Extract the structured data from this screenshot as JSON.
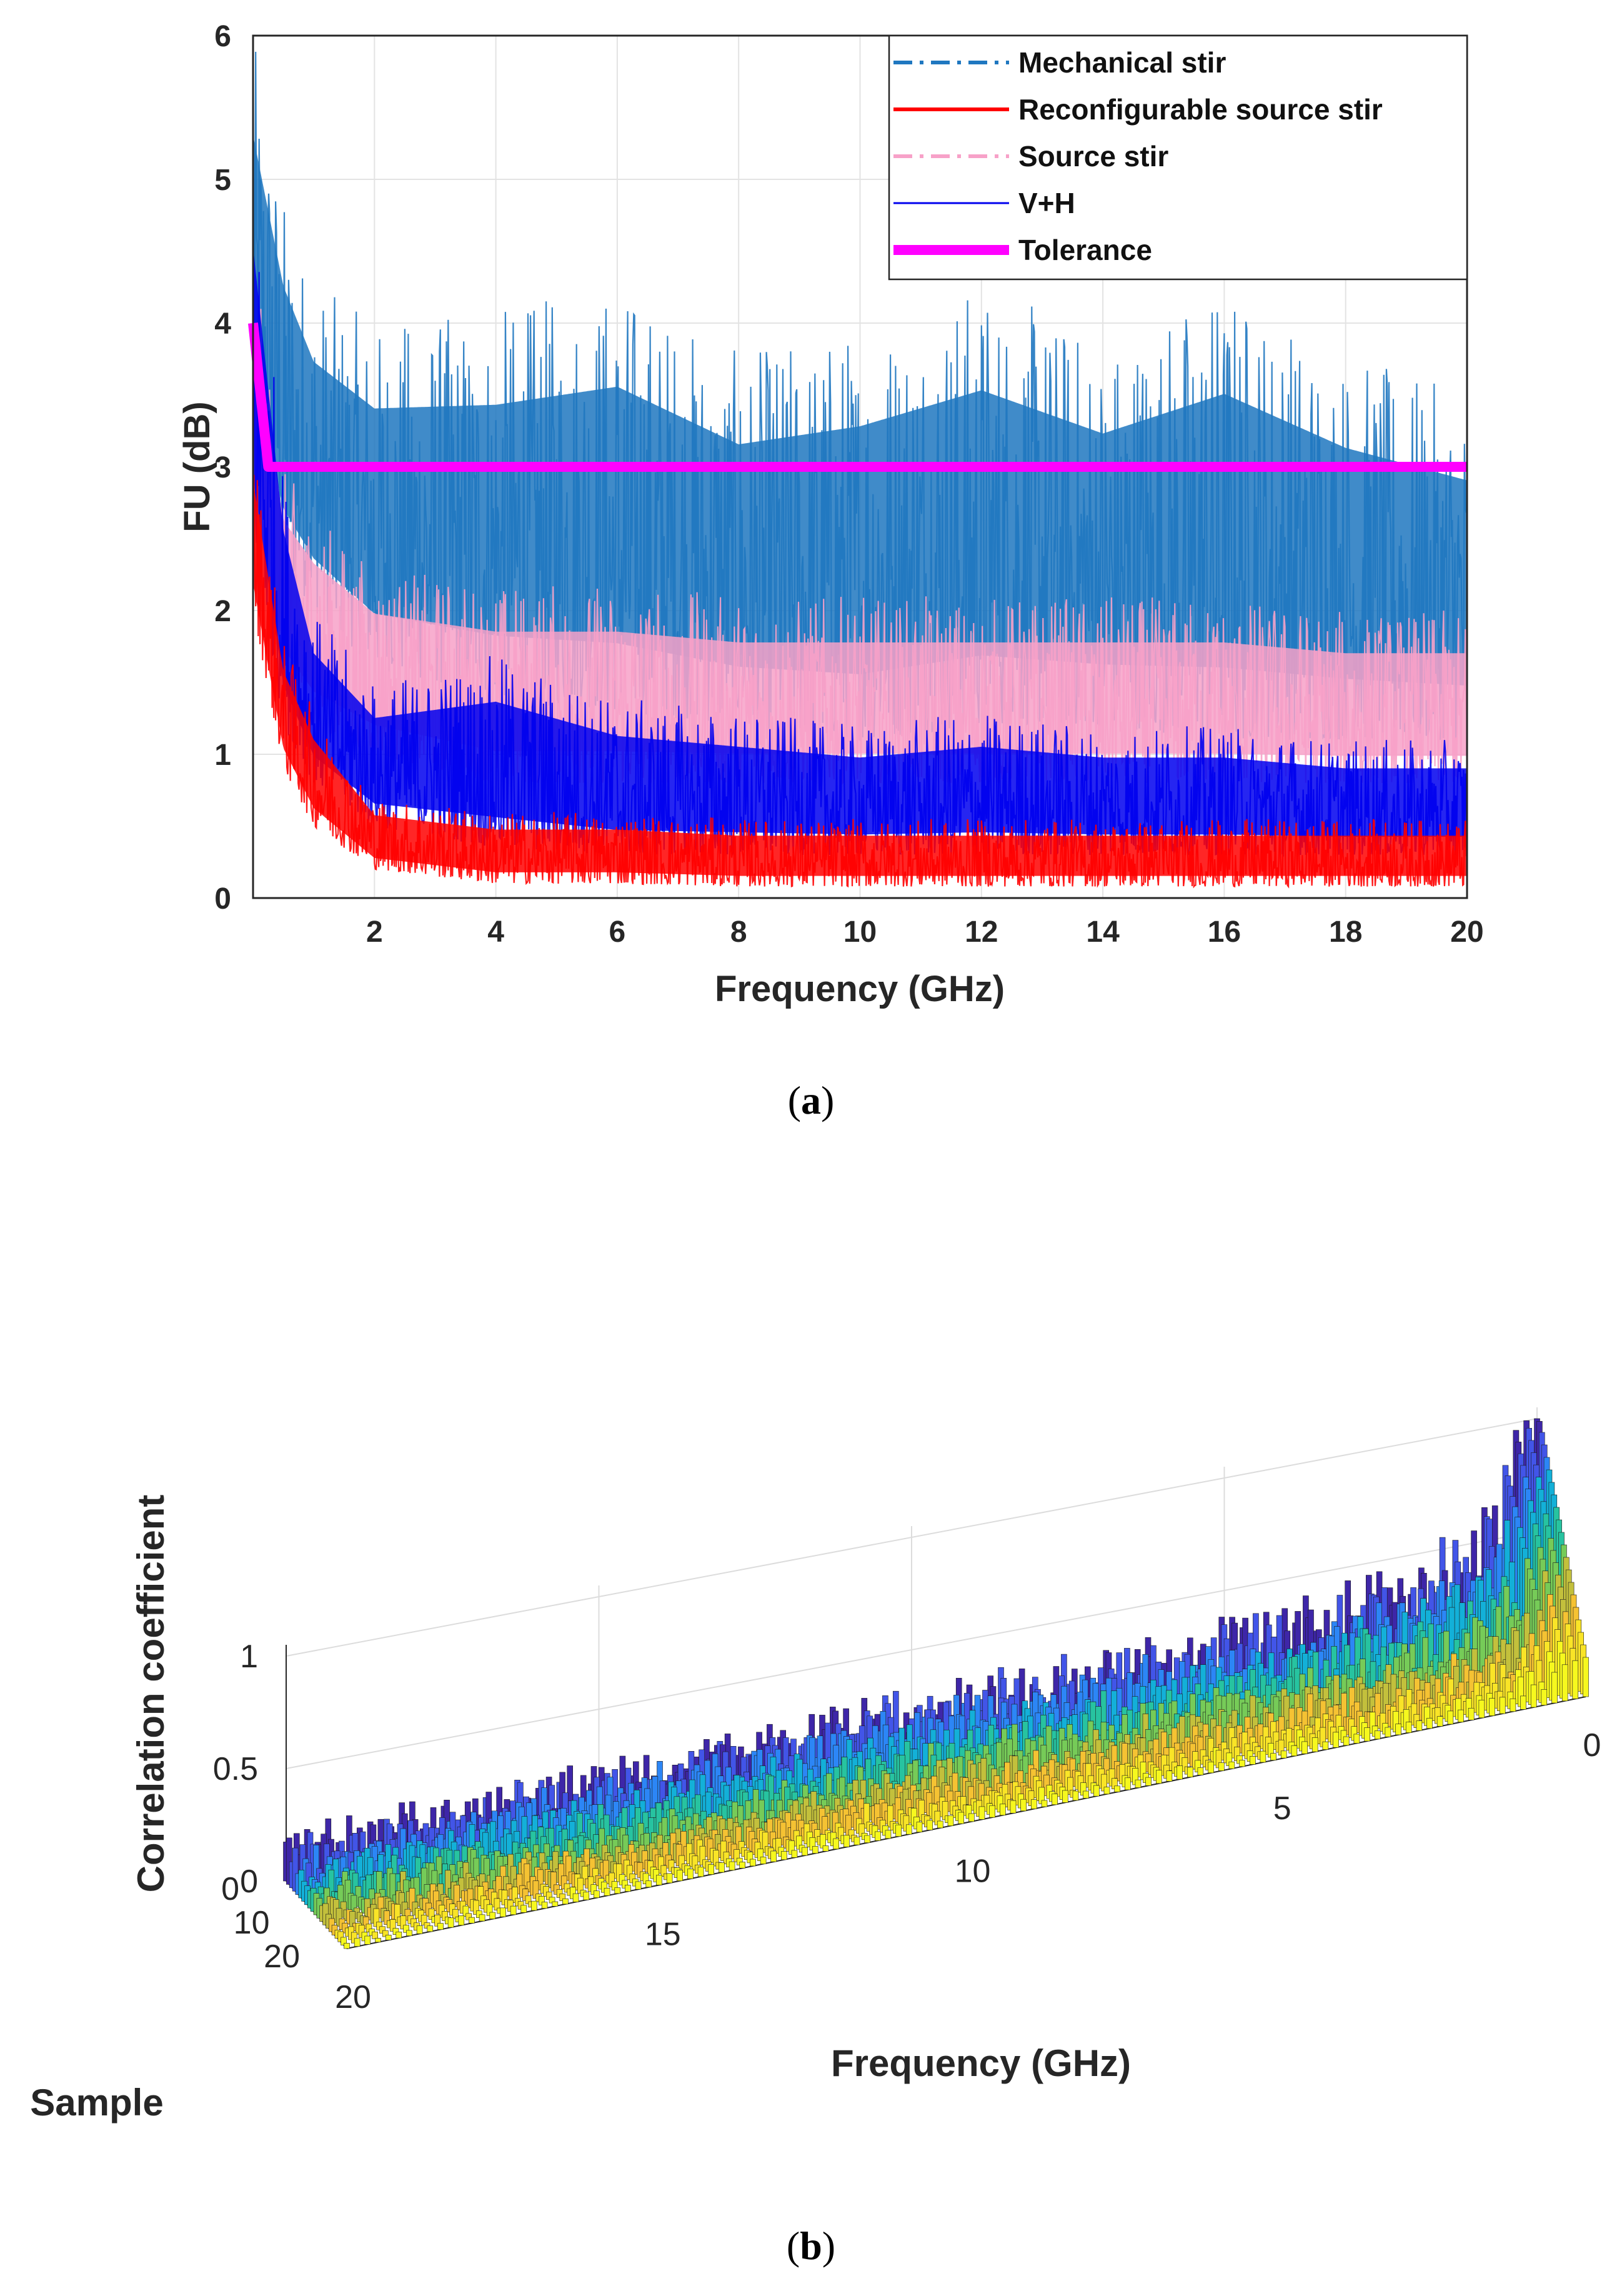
{
  "chart_data": [
    {
      "type": "line",
      "panel": "a",
      "caption": "a",
      "title": "",
      "xlabel": "Frequency (GHz)",
      "ylabel": "FU (dB)",
      "xlim": [
        0,
        20
      ],
      "ylim": [
        0,
        6
      ],
      "xticks": [
        2,
        4,
        6,
        8,
        10,
        12,
        14,
        16,
        18,
        20
      ],
      "yticks": [
        0,
        1,
        2,
        3,
        4,
        5,
        6
      ],
      "grid": true,
      "legend_position": "top-right",
      "series": [
        {
          "name": "Mechanical stir",
          "color": "#1f77c0",
          "style": "dash-dot",
          "envelope": {
            "x": [
              0,
              0.5,
              1,
              2,
              4,
              6,
              8,
              10,
              12,
              14,
              16,
              18,
              20
            ],
            "low": [
              3.2,
              2.3,
              2.0,
              1.6,
              1.4,
              1.3,
              1.2,
              1.1,
              1.2,
              1.2,
              1.1,
              1.1,
              1.1
            ],
            "high": [
              6.0,
              4.9,
              4.3,
              4.0,
              4.1,
              4.3,
              3.8,
              4.0,
              4.3,
              3.9,
              4.3,
              3.8,
              3.5
            ]
          }
        },
        {
          "name": "Reconfigurable source stir",
          "color": "#ff0000",
          "style": "solid",
          "envelope": {
            "x": [
              0,
              0.5,
              1,
              2,
              4,
              6,
              8,
              10,
              12,
              14,
              16,
              18,
              20
            ],
            "low": [
              2.0,
              0.9,
              0.5,
              0.2,
              0.1,
              0.1,
              0.08,
              0.08,
              0.08,
              0.08,
              0.08,
              0.08,
              0.08
            ],
            "high": [
              3.2,
              1.8,
              1.3,
              0.7,
              0.6,
              0.6,
              0.55,
              0.55,
              0.55,
              0.55,
              0.55,
              0.55,
              0.55
            ]
          }
        },
        {
          "name": "Source stir",
          "color": "#f7a1c8",
          "style": "dash-dot",
          "envelope": {
            "x": [
              0,
              0.5,
              1,
              2,
              4,
              6,
              8,
              10,
              12,
              14,
              16,
              18,
              20
            ],
            "low": [
              2.5,
              1.5,
              1.2,
              1.0,
              0.8,
              0.8,
              0.8,
              0.8,
              0.8,
              0.8,
              0.8,
              0.8,
              0.8
            ],
            "high": [
              4.5,
              3.0,
              2.7,
              2.3,
              2.2,
              2.2,
              2.1,
              2.1,
              2.1,
              2.1,
              2.1,
              2.0,
              2.0
            ]
          }
        },
        {
          "name": "V+H",
          "color": "#0000ee",
          "style": "solid",
          "envelope": {
            "x": [
              0,
              0.5,
              1,
              2,
              4,
              6,
              8,
              10,
              12,
              14,
              16,
              18,
              20
            ],
            "low": [
              2.5,
              1.2,
              0.8,
              0.5,
              0.35,
              0.3,
              0.3,
              0.3,
              0.3,
              0.3,
              0.3,
              0.3,
              0.3
            ],
            "high": [
              5.2,
              3.0,
              2.0,
              1.5,
              1.7,
              1.4,
              1.3,
              1.2,
              1.3,
              1.2,
              1.2,
              1.1,
              1.1
            ]
          }
        },
        {
          "name": "Tolerance",
          "color": "#ff00ff",
          "style": "thick-solid",
          "x": [
            0,
            0.25,
            20
          ],
          "y": [
            4,
            3,
            3
          ]
        }
      ]
    },
    {
      "type": "bar3d",
      "panel": "b",
      "caption": "b",
      "xlabel": "Frequency (GHz)",
      "ylabel": "Sample",
      "zlabel": "Correlation coefficient",
      "xlim": [
        0,
        20
      ],
      "ylim": [
        0,
        20
      ],
      "zlim": [
        0,
        1
      ],
      "xticks": [
        0,
        5,
        10,
        15,
        20
      ],
      "yticks": [
        0,
        10,
        20
      ],
      "zticks": [
        0,
        0.5,
        1
      ],
      "colormap": "parula",
      "back_row_profile": {
        "x": [
          0,
          0.3,
          0.6,
          1,
          2,
          3,
          5,
          8,
          10,
          12,
          15,
          18,
          20
        ],
        "z": [
          1.0,
          0.95,
          0.7,
          0.5,
          0.38,
          0.35,
          0.3,
          0.28,
          0.27,
          0.25,
          0.22,
          0.2,
          0.18
        ]
      }
    }
  ],
  "captions": {
    "a": "a",
    "b": "b"
  }
}
